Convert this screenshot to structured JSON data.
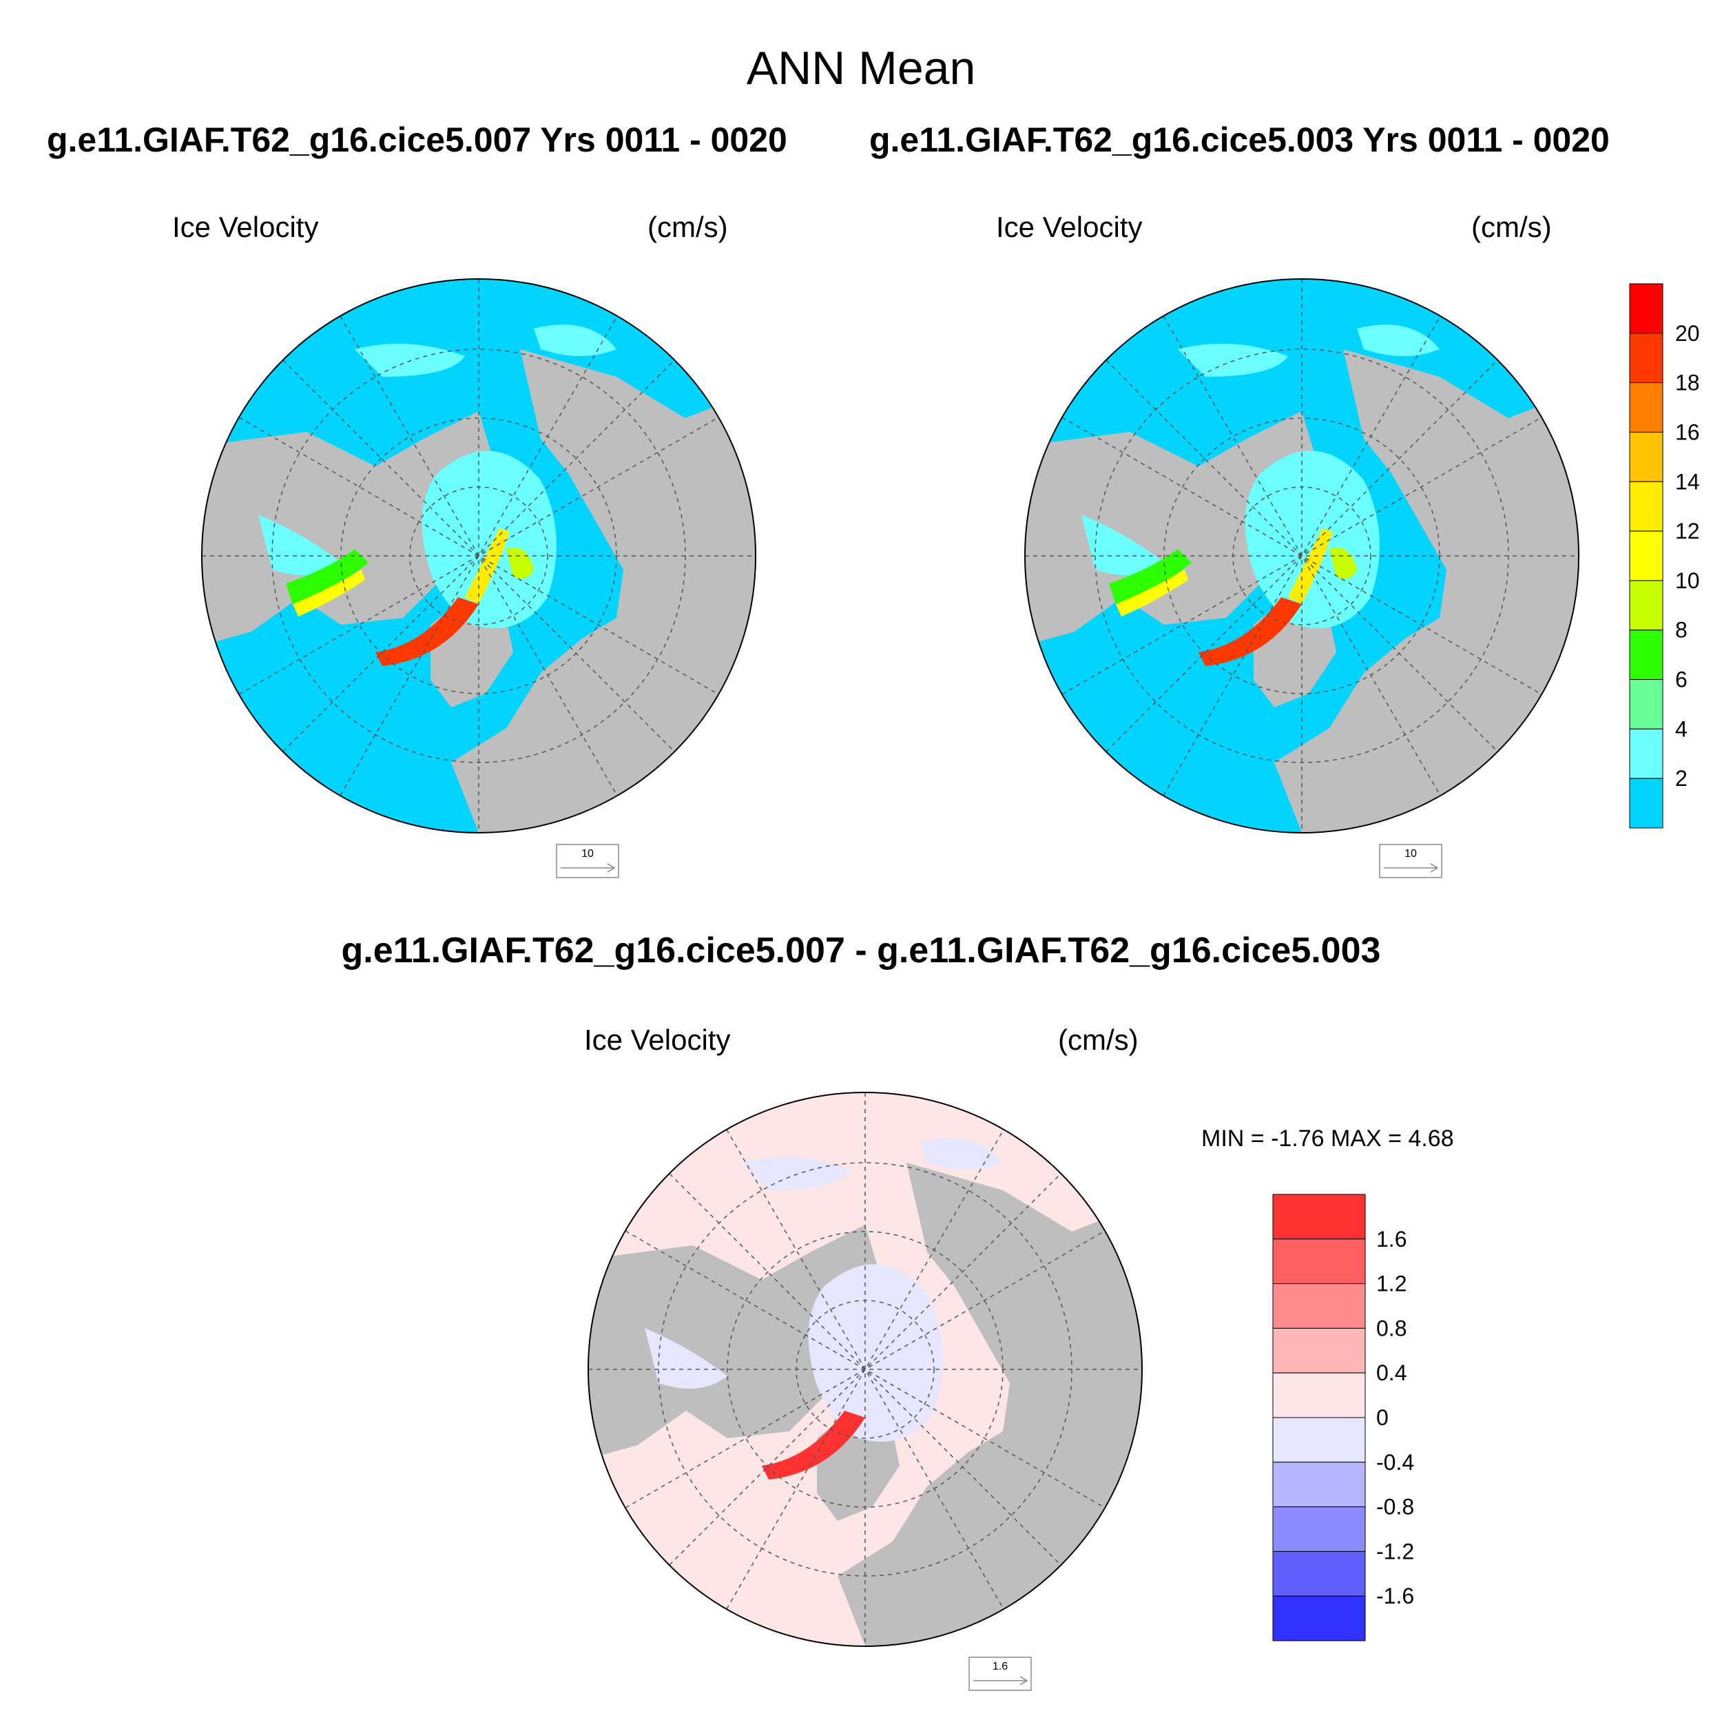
{
  "title": "ANN Mean",
  "panels": [
    {
      "case_title": "g.e11.GIAF.T62_g16.cice5.007  Yrs 0011 - 0020",
      "variable": "Ice Velocity",
      "units": "(cm/s)",
      "ref_vector": "10"
    },
    {
      "case_title": "g.e11.GIAF.T62_g16.cice5.003  Yrs 0011 - 0020",
      "variable": "Ice Velocity",
      "units": "(cm/s)",
      "ref_vector": "10"
    },
    {
      "case_title": "g.e11.GIAF.T62_g16.cice5.007 - g.e11.GIAF.T62_g16.cice5.003",
      "variable": "Ice Velocity",
      "units": "(cm/s)",
      "ref_vector": "1.6",
      "min_max": "MIN =  -1.76 MAX =   4.68"
    }
  ],
  "colorbar_abs": {
    "labels": [
      "20",
      "18",
      "16",
      "14",
      "12",
      "10",
      "8",
      "6",
      "4",
      "2"
    ],
    "colors": [
      "#ff0000",
      "#ff3800",
      "#ff7f00",
      "#ffc300",
      "#ffed00",
      "#ffff00",
      "#c8ff00",
      "#2bff00",
      "#68ff97",
      "#6cffff",
      "#00d4ff"
    ]
  },
  "colorbar_diff": {
    "labels": [
      "1.6",
      "1.2",
      "0.8",
      "0.4",
      "0",
      "-0.4",
      "-0.8",
      "-1.2",
      "-1.6"
    ],
    "colors": [
      "#ff3232",
      "#ff6060",
      "#ff8c8c",
      "#ffb6b6",
      "#ffe6e6",
      "#e6e6ff",
      "#b6b6ff",
      "#8c8cff",
      "#6060ff",
      "#3232ff"
    ]
  },
  "map_colors": {
    "ocean": "#00d4ff",
    "land": "#bebebe",
    "ice_low": "#6cffff",
    "diff_pos": "#ffe6e6",
    "diff_neg": "#e6e6ff"
  }
}
